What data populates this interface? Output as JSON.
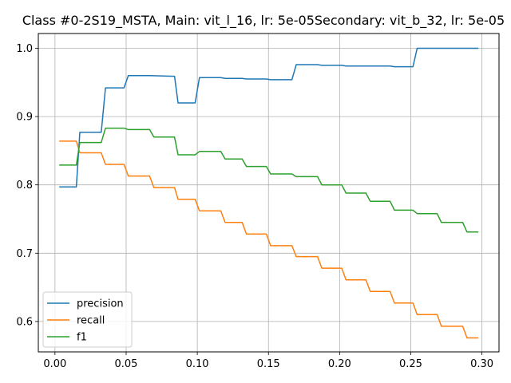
{
  "chart_data": {
    "type": "line",
    "title": "Class #0-2S19_MSTA, Main: vit_l_16, lr: 5e-05Secondary: vit_b_32, lr: 5e-05",
    "xlabel": "",
    "ylabel": "",
    "xlim": [
      -0.0117,
      0.312
    ],
    "ylim": [
      0.5555,
      1.0216
    ],
    "xticks": [
      0.0,
      0.05,
      0.1,
      0.15,
      0.2,
      0.25,
      0.3
    ],
    "xtick_labels": [
      "0.00",
      "0.05",
      "0.10",
      "0.15",
      "0.20",
      "0.25",
      "0.30"
    ],
    "yticks": [
      0.6,
      0.7,
      0.8,
      0.9,
      1.0
    ],
    "ytick_labels": [
      "0.6",
      "0.7",
      "0.8",
      "0.9",
      "1.0"
    ],
    "grid": true,
    "legend_position": "lower-left",
    "series": [
      {
        "name": "precision",
        "color": "#1f77b4",
        "x": [
          0.003,
          0.015,
          0.0175,
          0.0325,
          0.0355,
          0.0485,
          0.0515,
          0.0665,
          0.084,
          0.0865,
          0.0985,
          0.1015,
          0.1165,
          0.1195,
          0.1315,
          0.1345,
          0.1485,
          0.1515,
          0.1665,
          0.1695,
          0.1845,
          0.1875,
          0.2015,
          0.2045,
          0.2185,
          0.2215,
          0.2355,
          0.2385,
          0.2515,
          0.2545,
          0.2975
        ],
        "y": [
          0.797,
          0.797,
          0.877,
          0.877,
          0.942,
          0.942,
          0.96,
          0.96,
          0.959,
          0.92,
          0.92,
          0.957,
          0.957,
          0.956,
          0.956,
          0.955,
          0.955,
          0.954,
          0.954,
          0.976,
          0.976,
          0.975,
          0.975,
          0.974,
          0.974,
          0.974,
          0.974,
          0.973,
          0.973,
          1.0,
          1.0
        ]
      },
      {
        "name": "recall",
        "color": "#ff7f0e",
        "x": [
          0.003,
          0.015,
          0.0175,
          0.0325,
          0.0355,
          0.0485,
          0.0515,
          0.0665,
          0.0695,
          0.084,
          0.0865,
          0.0985,
          0.1015,
          0.1165,
          0.1195,
          0.1315,
          0.1345,
          0.1485,
          0.1515,
          0.1665,
          0.1695,
          0.1845,
          0.1875,
          0.2015,
          0.2045,
          0.2185,
          0.2215,
          0.2355,
          0.2385,
          0.2515,
          0.2545,
          0.2685,
          0.2715,
          0.2865,
          0.2895,
          0.2975
        ],
        "y": [
          0.864,
          0.864,
          0.847,
          0.847,
          0.83,
          0.83,
          0.813,
          0.813,
          0.796,
          0.796,
          0.779,
          0.779,
          0.762,
          0.762,
          0.745,
          0.745,
          0.728,
          0.728,
          0.711,
          0.711,
          0.695,
          0.695,
          0.678,
          0.678,
          0.661,
          0.661,
          0.644,
          0.644,
          0.627,
          0.627,
          0.61,
          0.61,
          0.593,
          0.593,
          0.576,
          0.576
        ]
      },
      {
        "name": "f1",
        "color": "#2ca02c",
        "x": [
          0.003,
          0.015,
          0.0175,
          0.0325,
          0.0355,
          0.0485,
          0.0515,
          0.0665,
          0.0695,
          0.084,
          0.0865,
          0.0985,
          0.1015,
          0.1165,
          0.1195,
          0.1315,
          0.1345,
          0.1485,
          0.1515,
          0.1665,
          0.1695,
          0.1845,
          0.1875,
          0.2015,
          0.2045,
          0.2185,
          0.2215,
          0.2355,
          0.2385,
          0.2515,
          0.2545,
          0.2685,
          0.2715,
          0.2865,
          0.2895,
          0.2975
        ],
        "y": [
          0.829,
          0.829,
          0.862,
          0.862,
          0.883,
          0.883,
          0.881,
          0.881,
          0.87,
          0.87,
          0.844,
          0.844,
          0.849,
          0.849,
          0.838,
          0.838,
          0.827,
          0.827,
          0.816,
          0.816,
          0.812,
          0.812,
          0.8,
          0.8,
          0.788,
          0.788,
          0.776,
          0.776,
          0.763,
          0.763,
          0.758,
          0.758,
          0.745,
          0.745,
          0.731,
          0.731
        ]
      }
    ]
  }
}
